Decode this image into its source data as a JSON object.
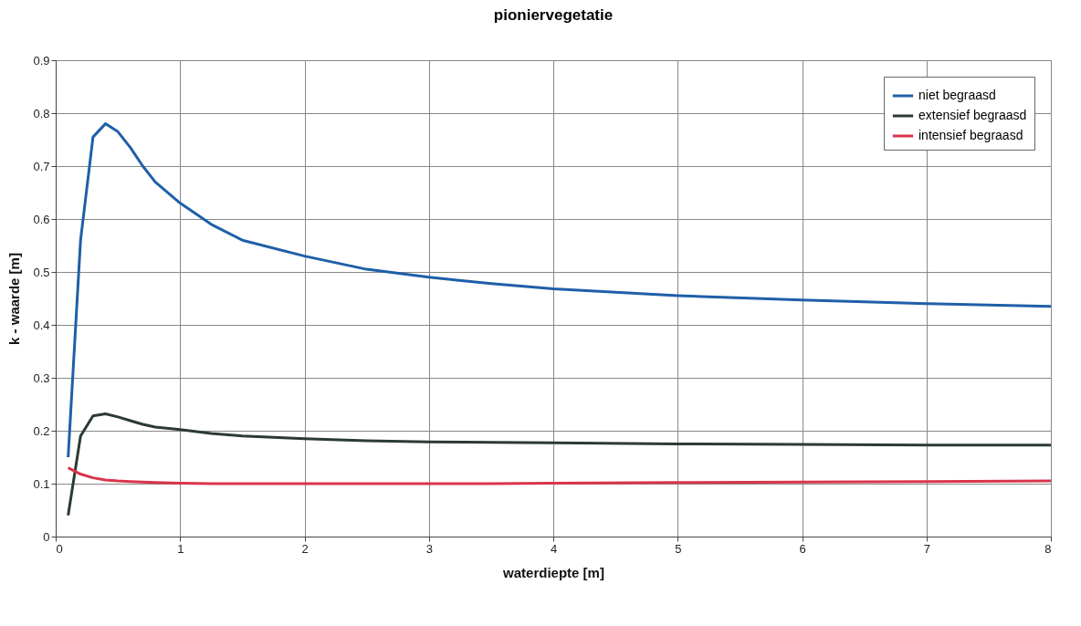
{
  "chart_data": {
    "type": "line",
    "title": "pioniervegetatie",
    "xlabel": "waterdiepte   [m]",
    "ylabel": "k - waarde    [m]",
    "x": [
      0.1,
      0.2,
      0.3,
      0.4,
      0.5,
      0.6,
      0.7,
      0.8,
      1,
      1.25,
      1.5,
      2,
      2.5,
      3,
      3.5,
      4,
      5,
      6,
      7,
      8
    ],
    "series": [
      {
        "name": "niet begraasd",
        "color": "#1f5fa8",
        "values": [
          0.15,
          0.56,
          0.755,
          0.78,
          0.765,
          0.735,
          0.7,
          0.67,
          0.63,
          0.59,
          0.56,
          0.53,
          0.505,
          0.49,
          0.478,
          0.468,
          0.455,
          0.447,
          0.44,
          0.435
        ]
      },
      {
        "name": "extensief begraasd",
        "color": "#2b3a35",
        "values": [
          0.04,
          0.19,
          0.228,
          0.232,
          0.226,
          0.219,
          0.212,
          0.207,
          0.202,
          0.195,
          0.19,
          0.185,
          0.181,
          0.179,
          0.178,
          0.177,
          0.175,
          0.174,
          0.173,
          0.173
        ]
      },
      {
        "name": "intensief begraasd",
        "color": "#d9344a",
        "values": [
          0.13,
          0.118,
          0.111,
          0.107,
          0.105,
          0.104,
          0.103,
          0.102,
          0.101,
          0.1,
          0.1,
          0.1,
          0.1,
          0.1,
          0.1,
          0.101,
          0.102,
          0.103,
          0.104,
          0.105
        ]
      }
    ],
    "xlim": [
      0,
      8
    ],
    "xticks": [
      0,
      1,
      2,
      3,
      4,
      5,
      6,
      7,
      8
    ],
    "ylim": [
      0,
      0.9
    ],
    "yticks": [
      0,
      0.1,
      0.2,
      0.3,
      0.4,
      0.5,
      0.6,
      0.7,
      0.8,
      0.9
    ],
    "grid": true,
    "legend": "top right",
    "marker": "none",
    "line_style": "solid"
  }
}
